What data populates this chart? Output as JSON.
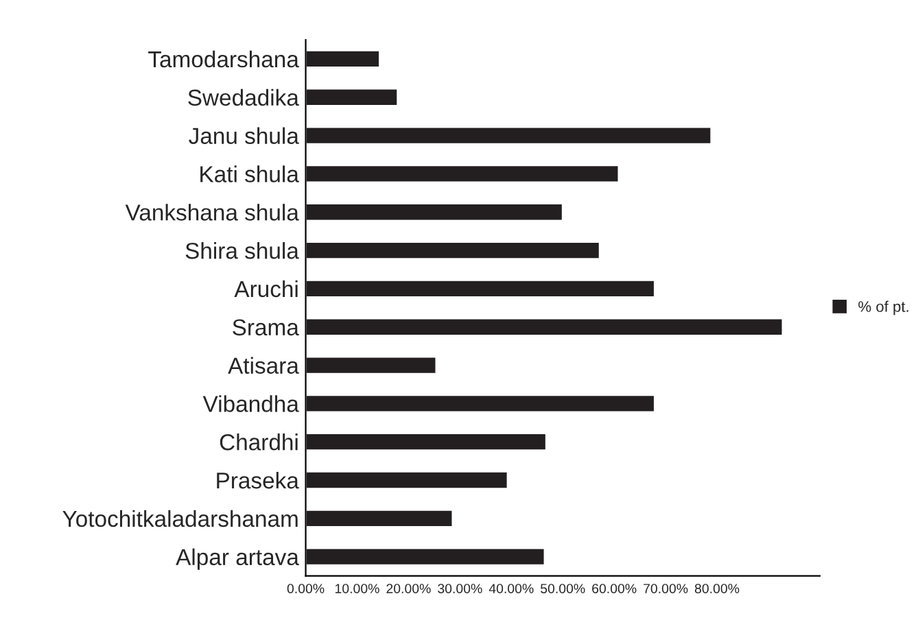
{
  "chart_data": {
    "type": "bar",
    "orientation": "horizontal",
    "categories": [
      "Tamodarshana",
      "Swedadika",
      "Janu shula",
      "Kati shula",
      "Vankshana shula",
      "Shira shula",
      "Aruchi",
      "Srama",
      "Atisara",
      "Vibandha",
      "Chardhi",
      "Praseka",
      "Yotochitkaladarshanam",
      "Alpar artava"
    ],
    "series": [
      {
        "name": "% of pt.",
        "color": "#231f20",
        "values": [
          14.4,
          17.9,
          78.9,
          60.9,
          50.0,
          57.2,
          67.9,
          92.8,
          25.4,
          67.9,
          46.8,
          39.3,
          28.6,
          46.5
        ]
      }
    ],
    "xlim": [
      0,
      100
    ],
    "xticks": [
      {
        "value": 0,
        "label": "0.00%"
      },
      {
        "value": 10,
        "label": "10.00%"
      },
      {
        "value": 20,
        "label": "20.00%"
      },
      {
        "value": 30,
        "label": "30.00%"
      },
      {
        "value": 40,
        "label": "40.00%"
      },
      {
        "value": 50,
        "label": "50.00%"
      },
      {
        "value": 60,
        "label": "60.00%"
      },
      {
        "value": 70,
        "label": "70.00%"
      },
      {
        "value": 80,
        "label": "80.00%"
      }
    ],
    "grid": false,
    "legend": "right"
  }
}
